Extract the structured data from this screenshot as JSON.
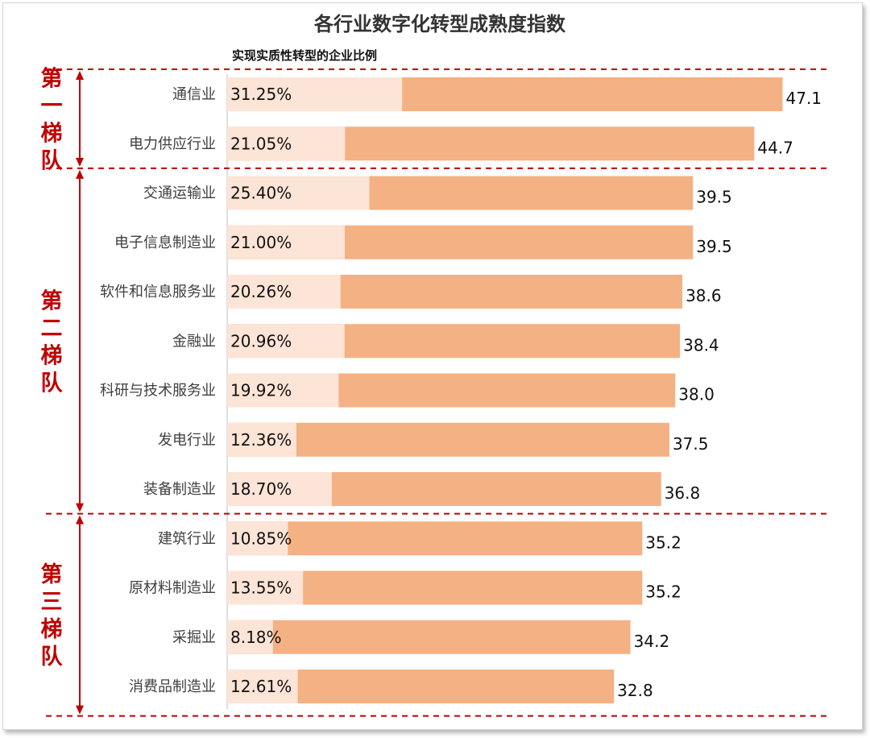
{
  "chart_data": {
    "type": "bar",
    "title": "各行业数字化转型成熟度指数",
    "subtitle": "实现实质性转型的企业比例",
    "categories": [
      "通信业",
      "电力供应行业",
      "交通运输业",
      "电子信息制造业",
      "软件和信息服务业",
      "金融业",
      "科研与技术服务业",
      "发电行业",
      "装备制造业",
      "建筑行业",
      "原材料制造业",
      "采掘业",
      "消费品制造业"
    ],
    "series": [
      {
        "values": [
          47.1,
          44.7,
          39.5,
          39.5,
          38.6,
          38.4,
          38.0,
          37.5,
          36.8,
          35.2,
          35.2,
          34.2,
          32.8
        ],
        "labels": [
          "47.1",
          "44.7",
          "39.5",
          "39.5",
          "38.6",
          "38.4",
          "38.0",
          "37.5",
          "36.8",
          "35.2",
          "35.2",
          "34.2",
          "32.8"
        ]
      },
      {
        "name": "实现实质性转型的企业比例",
        "values": [
          31.25,
          21.05,
          25.4,
          21.0,
          20.26,
          20.96,
          19.92,
          12.36,
          18.7,
          10.85,
          13.55,
          8.18,
          12.61
        ],
        "labels": [
          "31.25%",
          "21.05%",
          "25.40%",
          "21.00%",
          "20.26%",
          "20.96%",
          "19.92%",
          "12.36%",
          "18.70%",
          "10.85%",
          "13.55%",
          "8.18%",
          "12.61%"
        ]
      }
    ],
    "tiers": [
      {
        "label": "第一梯队",
        "chars": [
          "第",
          "一",
          "梯",
          "队"
        ],
        "count": 2
      },
      {
        "label": "第二梯队",
        "chars": [
          "第",
          "二",
          "梯",
          "队"
        ],
        "count": 7
      },
      {
        "label": "第三梯队",
        "chars": [
          "第",
          "三",
          "梯",
          "队"
        ],
        "count": 4
      }
    ],
    "colors": {
      "index_bar": "#f4b183",
      "pct_bar": "#fce4d6",
      "tier": "#c00000",
      "axis": "#bfbfbf"
    }
  }
}
